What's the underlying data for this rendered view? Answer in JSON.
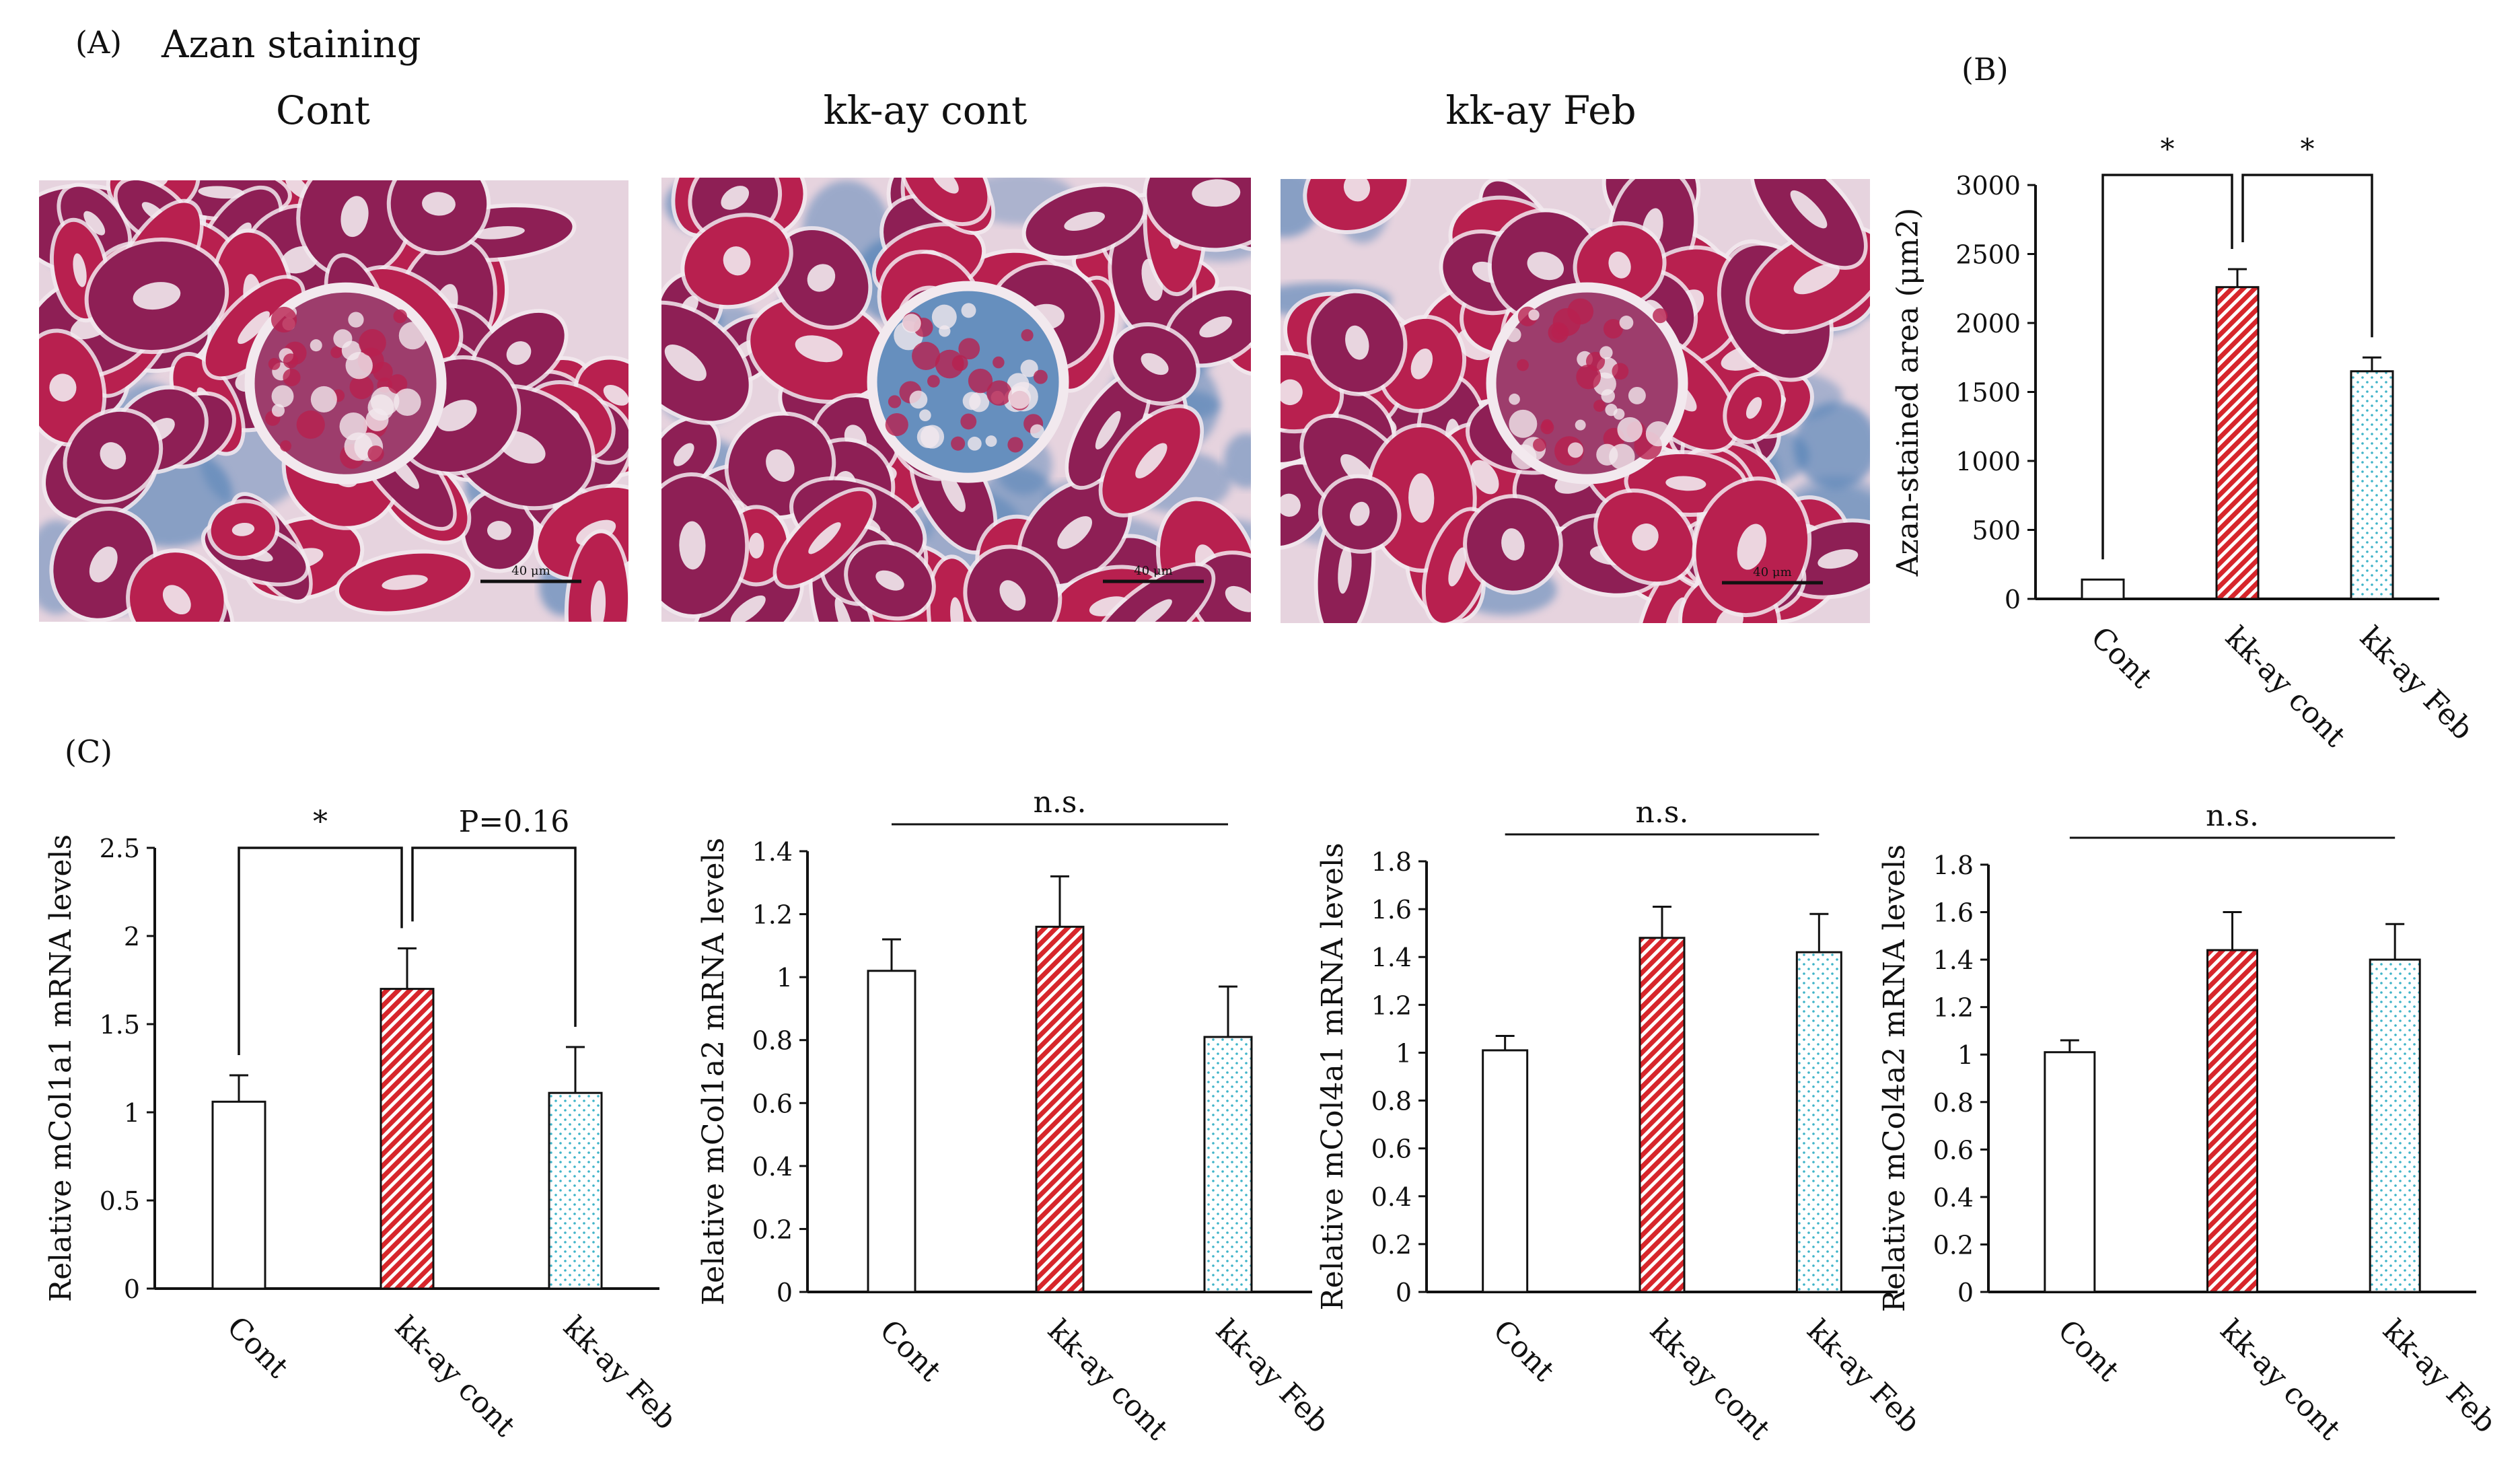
{
  "figure": {
    "panel_a": {
      "letter": "(A)",
      "heading": "Azan staining",
      "images": [
        {
          "title": "Cont",
          "scale_label": "40 μm",
          "appearance": "red-purple tubules, minimal blue"
        },
        {
          "title": "kk-ay cont",
          "scale_label": "40 μm",
          "appearance": "red tubules with extensive blue collagen staining around glomerulus"
        },
        {
          "title": "kk-ay Feb",
          "scale_label": "40 μm",
          "appearance": "red tubules with moderate blue staining"
        }
      ]
    },
    "panel_b": {
      "letter": "(B)"
    },
    "panel_c": {
      "letter": "(C)"
    }
  },
  "colors": {
    "tissue_red": "#b8204f",
    "tissue_purple": "#8e1f55",
    "collagen_blue": "#4d7fb5",
    "lumen_white": "#f2e9ee",
    "bar_hatch_red": "#d7262b",
    "bar_dots_cyan": "#3fb4c9"
  },
  "chart_data": [
    {
      "id": "B",
      "type": "bar",
      "categories": [
        "Cont",
        "kk-ay cont",
        "kk-ay Feb"
      ],
      "values": [
        140,
        2260,
        1650
      ],
      "errors": [
        0,
        130,
        100
      ],
      "patterns": [
        "open",
        "red-hatch",
        "cyan-dots"
      ],
      "ylabel": "Azan-stained area (μm2)",
      "ylim": [
        0,
        3000
      ],
      "yticks": [
        "0",
        "500",
        "1000",
        "1500",
        "2000",
        "2500",
        "3000"
      ],
      "annotations": [
        {
          "from": 0,
          "to": 1,
          "text": "*"
        },
        {
          "from": 1,
          "to": 2,
          "text": "*"
        }
      ],
      "grid": false
    },
    {
      "id": "C1",
      "type": "bar",
      "categories": [
        "Cont",
        "kk-ay cont",
        "kk-ay Feb"
      ],
      "values": [
        1.06,
        1.7,
        1.11
      ],
      "errors": [
        0.15,
        0.23,
        0.26
      ],
      "patterns": [
        "open",
        "red-hatch",
        "cyan-dots"
      ],
      "ylabel": "Relative mCol1a1 mRNA levels",
      "ylim": [
        0,
        2.5
      ],
      "yticks": [
        "0",
        "0.5",
        "1",
        "1.5",
        "2",
        "2.5"
      ],
      "annotations": [
        {
          "from": 0,
          "to": 1,
          "text": "*"
        },
        {
          "from": 1,
          "to": 2,
          "text": "P=0.16"
        }
      ],
      "grid": false
    },
    {
      "id": "C2",
      "type": "bar",
      "categories": [
        "Cont",
        "kk-ay cont",
        "kk-ay Feb"
      ],
      "values": [
        1.02,
        1.16,
        0.81
      ],
      "errors": [
        0.1,
        0.16,
        0.16
      ],
      "patterns": [
        "open",
        "red-hatch",
        "cyan-dots"
      ],
      "ylabel": "Relative mCol1a2 mRNA levels",
      "ylim": [
        0,
        1.4
      ],
      "yticks": [
        "0",
        "0.2",
        "0.4",
        "0.6",
        "0.8",
        "1",
        "1.2",
        "1.4"
      ],
      "annotations": [
        {
          "from": 0,
          "to": 2,
          "text": "n.s.",
          "style": "line"
        }
      ],
      "grid": false
    },
    {
      "id": "C3",
      "type": "bar",
      "categories": [
        "Cont",
        "kk-ay cont",
        "kk-ay Feb"
      ],
      "values": [
        1.01,
        1.48,
        1.42
      ],
      "errors": [
        0.06,
        0.13,
        0.16
      ],
      "patterns": [
        "open",
        "red-hatch",
        "cyan-dots"
      ],
      "ylabel": "Relative mCol4a1 mRNA levels",
      "ylim": [
        0,
        1.8
      ],
      "yticks": [
        "0",
        "0.2",
        "0.4",
        "0.6",
        "0.8",
        "1",
        "1.2",
        "1.4",
        "1.6",
        "1.8"
      ],
      "annotations": [
        {
          "from": 0,
          "to": 2,
          "text": "n.s.",
          "style": "line"
        }
      ],
      "grid": false
    },
    {
      "id": "C4",
      "type": "bar",
      "categories": [
        "Cont",
        "kk-ay cont",
        "kk-ay Feb"
      ],
      "values": [
        1.01,
        1.44,
        1.4
      ],
      "errors": [
        0.05,
        0.16,
        0.15
      ],
      "patterns": [
        "open",
        "red-hatch",
        "cyan-dots"
      ],
      "ylabel": "Relative mCol4a2 mRNA levels",
      "ylim": [
        0,
        1.8
      ],
      "yticks": [
        "0",
        "0.2",
        "0.4",
        "0.6",
        "0.8",
        "1",
        "1.2",
        "1.4",
        "1.6",
        "1.8"
      ],
      "annotations": [
        {
          "from": 0,
          "to": 2,
          "text": "n.s.",
          "style": "line"
        }
      ],
      "grid": false
    }
  ]
}
